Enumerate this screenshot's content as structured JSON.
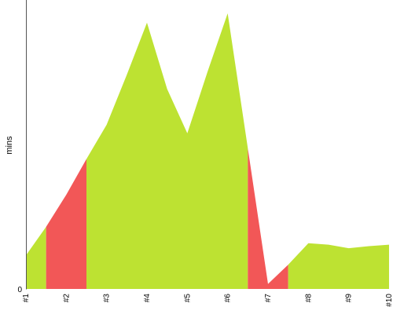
{
  "chart_data": {
    "type": "area",
    "title": "",
    "xlabel": "",
    "ylabel": "mins",
    "categories": [
      "#1",
      "#2",
      "#3",
      "#4",
      "#5",
      "#6",
      "#7",
      "#8",
      "#9",
      "#10"
    ],
    "segment_points": [
      {
        "x": 0.0,
        "y": 4.7
      },
      {
        "x": 0.5,
        "y": 8.7
      },
      {
        "x": 1.0,
        "y": 13.2
      },
      {
        "x": 1.5,
        "y": 18.2
      },
      {
        "x": 2.0,
        "y": 23.0
      },
      {
        "x": 2.5,
        "y": 30.0
      },
      {
        "x": 3.0,
        "y": 37.3
      },
      {
        "x": 3.5,
        "y": 28.0
      },
      {
        "x": 4.0,
        "y": 21.8
      },
      {
        "x": 4.5,
        "y": 30.4
      },
      {
        "x": 5.0,
        "y": 38.6
      },
      {
        "x": 5.5,
        "y": 19.7
      },
      {
        "x": 6.0,
        "y": 0.7
      },
      {
        "x": 6.5,
        "y": 3.4
      },
      {
        "x": 7.0,
        "y": 6.4
      },
      {
        "x": 7.5,
        "y": 6.2
      },
      {
        "x": 8.0,
        "y": 5.7
      },
      {
        "x": 8.5,
        "y": 6.0
      },
      {
        "x": 9.0,
        "y": 6.2
      }
    ],
    "highlight_ranges": [
      {
        "from": 0.5,
        "to": 1.5
      },
      {
        "from": 5.5,
        "to": 6.5
      }
    ],
    "ytick_labels": [
      {
        "value": 0,
        "label": "0"
      }
    ],
    "ylim": [
      0,
      41
    ],
    "grid": false,
    "legend": "none",
    "colors": {
      "area": "#bde232",
      "highlight": "#f25757",
      "axis": "#555555"
    }
  }
}
